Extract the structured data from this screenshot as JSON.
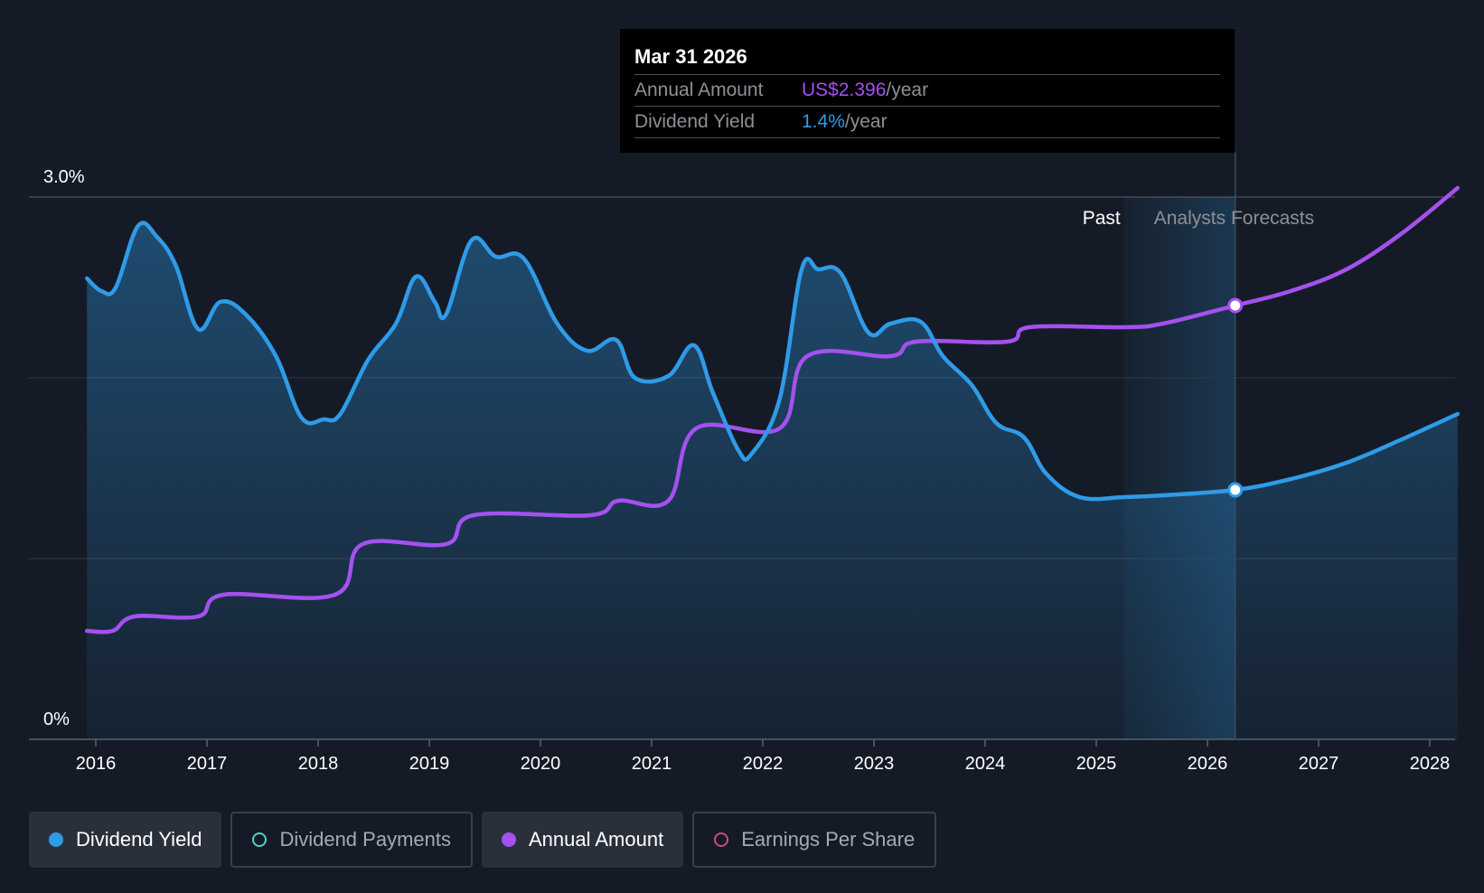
{
  "tooltip": {
    "date": "Mar 31 2026",
    "annual_amount_label": "Annual Amount",
    "annual_amount_value": "US$2.396",
    "annual_amount_unit": "/year",
    "dividend_yield_label": "Dividend Yield",
    "dividend_yield_value": "1.4%",
    "dividend_yield_unit": "/year"
  },
  "legend": {
    "items": [
      {
        "label": "Dividend Yield",
        "active": true
      },
      {
        "label": "Dividend Payments",
        "active": false
      },
      {
        "label": "Annual Amount",
        "active": true
      },
      {
        "label": "Earnings Per Share",
        "active": false
      }
    ]
  },
  "colors": {
    "background": "#151b26",
    "dividend_yield": "#2f9be8",
    "annual_amount": "#a451f0",
    "dividend_payments": "#4fd1c5",
    "earnings_per_share": "#c94b7f",
    "past_label": "#ffffff",
    "forecast_label": "#8c9096"
  },
  "chart_data": {
    "type": "line",
    "ylabel_top": "3.0%",
    "ylabel_bottom": "0%",
    "ylim": [
      0,
      3.0
    ],
    "xlim": [
      2015.5,
      2028.25
    ],
    "x_ticks": [
      "2016",
      "2017",
      "2018",
      "2019",
      "2020",
      "2021",
      "2022",
      "2023",
      "2024",
      "2025",
      "2026",
      "2027",
      "2028"
    ],
    "regions": {
      "past_label": "Past",
      "forecast_label": "Analysts Forecasts",
      "past_end": 2025.25,
      "forecast_end": 2026.25
    },
    "highlight_x": 2026.25,
    "series": [
      {
        "name": "Dividend Yield",
        "unit": "%",
        "points": [
          [
            2015.92,
            2.55
          ],
          [
            2016.05,
            2.48
          ],
          [
            2016.18,
            2.5
          ],
          [
            2016.38,
            2.84
          ],
          [
            2016.55,
            2.78
          ],
          [
            2016.72,
            2.62
          ],
          [
            2016.92,
            2.27
          ],
          [
            2017.12,
            2.42
          ],
          [
            2017.35,
            2.35
          ],
          [
            2017.62,
            2.12
          ],
          [
            2017.85,
            1.78
          ],
          [
            2018.05,
            1.77
          ],
          [
            2018.2,
            1.8
          ],
          [
            2018.45,
            2.1
          ],
          [
            2018.7,
            2.3
          ],
          [
            2018.88,
            2.56
          ],
          [
            2019.05,
            2.42
          ],
          [
            2019.15,
            2.35
          ],
          [
            2019.38,
            2.76
          ],
          [
            2019.6,
            2.67
          ],
          [
            2019.85,
            2.66
          ],
          [
            2020.15,
            2.3
          ],
          [
            2020.42,
            2.15
          ],
          [
            2020.68,
            2.21
          ],
          [
            2020.85,
            2.0
          ],
          [
            2021.15,
            2.01
          ],
          [
            2021.38,
            2.18
          ],
          [
            2021.55,
            1.92
          ],
          [
            2021.78,
            1.6
          ],
          [
            2021.9,
            1.58
          ],
          [
            2022.15,
            1.88
          ],
          [
            2022.35,
            2.6
          ],
          [
            2022.5,
            2.6
          ],
          [
            2022.7,
            2.58
          ],
          [
            2022.95,
            2.25
          ],
          [
            2023.15,
            2.3
          ],
          [
            2023.42,
            2.31
          ],
          [
            2023.62,
            2.12
          ],
          [
            2023.88,
            1.96
          ],
          [
            2024.1,
            1.75
          ],
          [
            2024.35,
            1.67
          ],
          [
            2024.55,
            1.47
          ],
          [
            2024.85,
            1.34
          ],
          [
            2025.25,
            1.34
          ],
          [
            2025.6,
            1.35
          ],
          [
            2026.25,
            1.38
          ],
          [
            2026.75,
            1.44
          ],
          [
            2027.25,
            1.53
          ],
          [
            2027.75,
            1.66
          ],
          [
            2028.25,
            1.8
          ]
        ]
      },
      {
        "name": "Annual Amount",
        "unit": "US$",
        "points": [
          [
            2015.92,
            0.6
          ],
          [
            2016.15,
            0.6
          ],
          [
            2016.35,
            0.68
          ],
          [
            2016.92,
            0.68
          ],
          [
            2017.15,
            0.8
          ],
          [
            2018.15,
            0.8
          ],
          [
            2018.4,
            1.08
          ],
          [
            2019.15,
            1.08
          ],
          [
            2019.4,
            1.24
          ],
          [
            2020.45,
            1.24
          ],
          [
            2020.7,
            1.32
          ],
          [
            2021.15,
            1.32
          ],
          [
            2021.4,
            1.72
          ],
          [
            2022.15,
            1.72
          ],
          [
            2022.4,
            2.12
          ],
          [
            2023.15,
            2.12
          ],
          [
            2023.38,
            2.2
          ],
          [
            2024.2,
            2.2
          ],
          [
            2024.4,
            2.28
          ],
          [
            2025.25,
            2.28
          ],
          [
            2025.6,
            2.3
          ],
          [
            2026.25,
            2.4
          ],
          [
            2026.75,
            2.48
          ],
          [
            2027.25,
            2.6
          ],
          [
            2027.75,
            2.8
          ],
          [
            2028.25,
            3.05
          ]
        ]
      }
    ]
  }
}
